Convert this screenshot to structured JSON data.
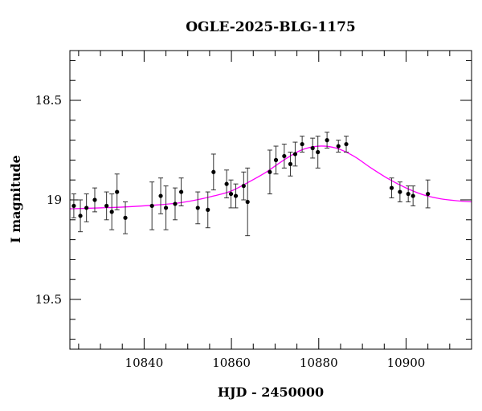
{
  "chart_data": {
    "type": "scatter",
    "title": "OGLE-2025-BLG-1175",
    "xlabel": "HJD - 2450000",
    "ylabel": "I magnitude",
    "xlim": [
      10823,
      10915
    ],
    "ylim": [
      19.75,
      18.25
    ],
    "y_inverted": true,
    "grid": false,
    "x_ticks": [
      {
        "value": 10840,
        "label": "10840"
      },
      {
        "value": 10860,
        "label": "10860"
      },
      {
        "value": 10880,
        "label": "10880"
      },
      {
        "value": 10900,
        "label": "10900"
      }
    ],
    "y_ticks": [
      {
        "value": 18.5,
        "label": "18.5"
      },
      {
        "value": 19.0,
        "label": "19"
      },
      {
        "value": 19.5,
        "label": "19.5"
      }
    ],
    "x_minor_step": 5,
    "y_minor_step": 0.1,
    "series": [
      {
        "type": "scatter_with_errors",
        "color": "#000000",
        "points": [
          {
            "x": 10823.9,
            "y": 19.03,
            "err": 0.06
          },
          {
            "x": 10825.4,
            "y": 19.08,
            "err": 0.08
          },
          {
            "x": 10826.8,
            "y": 19.04,
            "err": 0.07
          },
          {
            "x": 10828.7,
            "y": 19.0,
            "err": 0.06
          },
          {
            "x": 10831.4,
            "y": 19.03,
            "err": 0.07
          },
          {
            "x": 10832.6,
            "y": 19.06,
            "err": 0.09
          },
          {
            "x": 10833.8,
            "y": 18.96,
            "err": 0.09
          },
          {
            "x": 10835.7,
            "y": 19.09,
            "err": 0.08
          },
          {
            "x": 10841.8,
            "y": 19.03,
            "err": 0.12
          },
          {
            "x": 10843.8,
            "y": 18.98,
            "err": 0.09
          },
          {
            "x": 10845.0,
            "y": 19.04,
            "err": 0.11
          },
          {
            "x": 10847.1,
            "y": 19.02,
            "err": 0.08
          },
          {
            "x": 10848.5,
            "y": 18.96,
            "err": 0.07
          },
          {
            "x": 10852.3,
            "y": 19.04,
            "err": 0.08
          },
          {
            "x": 10854.6,
            "y": 19.05,
            "err": 0.09
          },
          {
            "x": 10855.9,
            "y": 18.86,
            "err": 0.09
          },
          {
            "x": 10858.9,
            "y": 18.92,
            "err": 0.07
          },
          {
            "x": 10859.9,
            "y": 18.97,
            "err": 0.07
          },
          {
            "x": 10861.0,
            "y": 18.98,
            "err": 0.06
          },
          {
            "x": 10862.8,
            "y": 18.93,
            "err": 0.07
          },
          {
            "x": 10863.7,
            "y": 19.01,
            "err": 0.17
          },
          {
            "x": 10868.8,
            "y": 18.86,
            "err": 0.11
          },
          {
            "x": 10870.2,
            "y": 18.8,
            "err": 0.07
          },
          {
            "x": 10872.1,
            "y": 18.78,
            "err": 0.06
          },
          {
            "x": 10873.5,
            "y": 18.82,
            "err": 0.06
          },
          {
            "x": 10874.6,
            "y": 18.77,
            "err": 0.06
          },
          {
            "x": 10876.2,
            "y": 18.72,
            "err": 0.04
          },
          {
            "x": 10878.6,
            "y": 18.74,
            "err": 0.05
          },
          {
            "x": 10879.8,
            "y": 18.76,
            "err": 0.08
          },
          {
            "x": 10881.9,
            "y": 18.7,
            "err": 0.04
          },
          {
            "x": 10884.5,
            "y": 18.73,
            "err": 0.03
          },
          {
            "x": 10886.3,
            "y": 18.72,
            "err": 0.04
          },
          {
            "x": 10896.7,
            "y": 18.94,
            "err": 0.05
          },
          {
            "x": 10898.6,
            "y": 18.96,
            "err": 0.05
          },
          {
            "x": 10900.5,
            "y": 18.97,
            "err": 0.04
          },
          {
            "x": 10901.6,
            "y": 18.98,
            "err": 0.05
          },
          {
            "x": 10905.0,
            "y": 18.97,
            "err": 0.07
          }
        ]
      },
      {
        "type": "line",
        "color": "#ff00ff",
        "points": [
          {
            "x": 10823,
            "y": 19.045
          },
          {
            "x": 10830,
            "y": 19.04
          },
          {
            "x": 10836,
            "y": 19.035
          },
          {
            "x": 10842,
            "y": 19.027
          },
          {
            "x": 10848,
            "y": 19.015
          },
          {
            "x": 10852,
            "y": 19.0
          },
          {
            "x": 10856,
            "y": 18.98
          },
          {
            "x": 10860,
            "y": 18.955
          },
          {
            "x": 10864,
            "y": 18.91
          },
          {
            "x": 10868,
            "y": 18.86
          },
          {
            "x": 10872,
            "y": 18.8
          },
          {
            "x": 10876,
            "y": 18.75
          },
          {
            "x": 10880,
            "y": 18.73
          },
          {
            "x": 10884,
            "y": 18.74
          },
          {
            "x": 10888,
            "y": 18.78
          },
          {
            "x": 10892,
            "y": 18.84
          },
          {
            "x": 10896,
            "y": 18.895
          },
          {
            "x": 10900,
            "y": 18.94
          },
          {
            "x": 10904,
            "y": 18.975
          },
          {
            "x": 10908,
            "y": 18.995
          },
          {
            "x": 10912,
            "y": 19.005
          },
          {
            "x": 10915,
            "y": 19.01
          }
        ]
      }
    ]
  }
}
